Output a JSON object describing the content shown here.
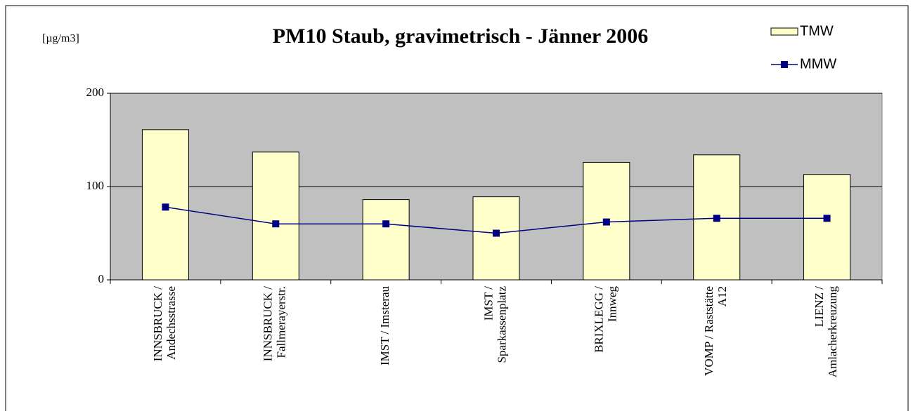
{
  "chart_data": {
    "type": "bar",
    "title": "PM10 Staub, gravimetrisch - Jänner 2006",
    "y_axis_label": "[µg/m3]",
    "categories": [
      [
        "INNSBRUCK /",
        "Andechsstrasse"
      ],
      [
        "INNSBRUCK /",
        "Fallmerayerstr."
      ],
      [
        "IMST / Imsterau"
      ],
      [
        "IMST /",
        "Sparkassenplatz"
      ],
      [
        "BRIXLEGG /",
        "Innweg"
      ],
      [
        "VOMP / Raststätte",
        "A12"
      ],
      [
        "LIENZ /",
        "Amlacherkreuzung"
      ]
    ],
    "series": [
      {
        "name": "TMW",
        "type": "bar",
        "color": "#ffffcc",
        "values": [
          161,
          137,
          86,
          89,
          126,
          134,
          113
        ]
      },
      {
        "name": "MMW",
        "type": "line",
        "color": "#000080",
        "values": [
          78,
          60,
          60,
          50,
          62,
          66,
          66
        ]
      }
    ],
    "ylim": [
      0,
      200
    ],
    "yticks": [
      0,
      100,
      200
    ],
    "grid": true,
    "plot_background": "#c0c0c0",
    "legend": "top-right"
  }
}
